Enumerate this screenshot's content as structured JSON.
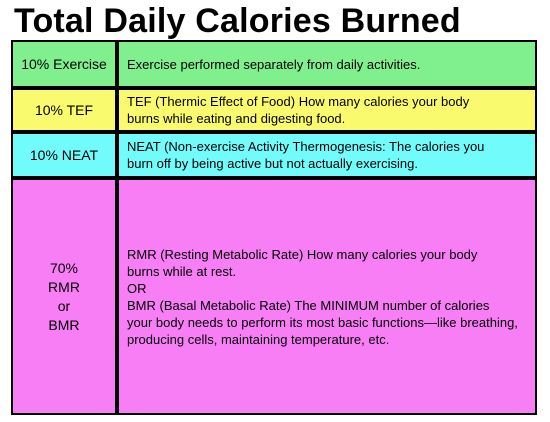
{
  "title": "Total Daily Calories Burned",
  "colors": {
    "exercise": "#7ff08d",
    "tef": "#fafa6e",
    "neat": "#71fbfb",
    "rmr": "#f77ef5",
    "border": "#000000"
  },
  "rows": [
    {
      "label": "10% Exercise",
      "description": [
        "Exercise performed separately from daily activities."
      ]
    },
    {
      "label": "10% TEF",
      "description": [
        "TEF (Thermic Effect of Food) How many calories your body",
        "burns while eating and digesting food."
      ]
    },
    {
      "label": "10% NEAT",
      "description": [
        "NEAT (Non-exercise Activity Thermogenesis: The calories you",
        "burn off by being active but not actually exercising."
      ]
    },
    {
      "label_lines": [
        "70%",
        "RMR",
        "or",
        "BMR"
      ],
      "description": [
        "RMR (Resting Metabolic Rate) How many calories your body",
        "burns while at rest.",
        "OR",
        "BMR (Basal Metabolic Rate) The MINIMUM number of calories",
        "your body needs to perform its most basic functions—like breathing,",
        "producing cells, maintaining temperature, etc."
      ]
    }
  ]
}
